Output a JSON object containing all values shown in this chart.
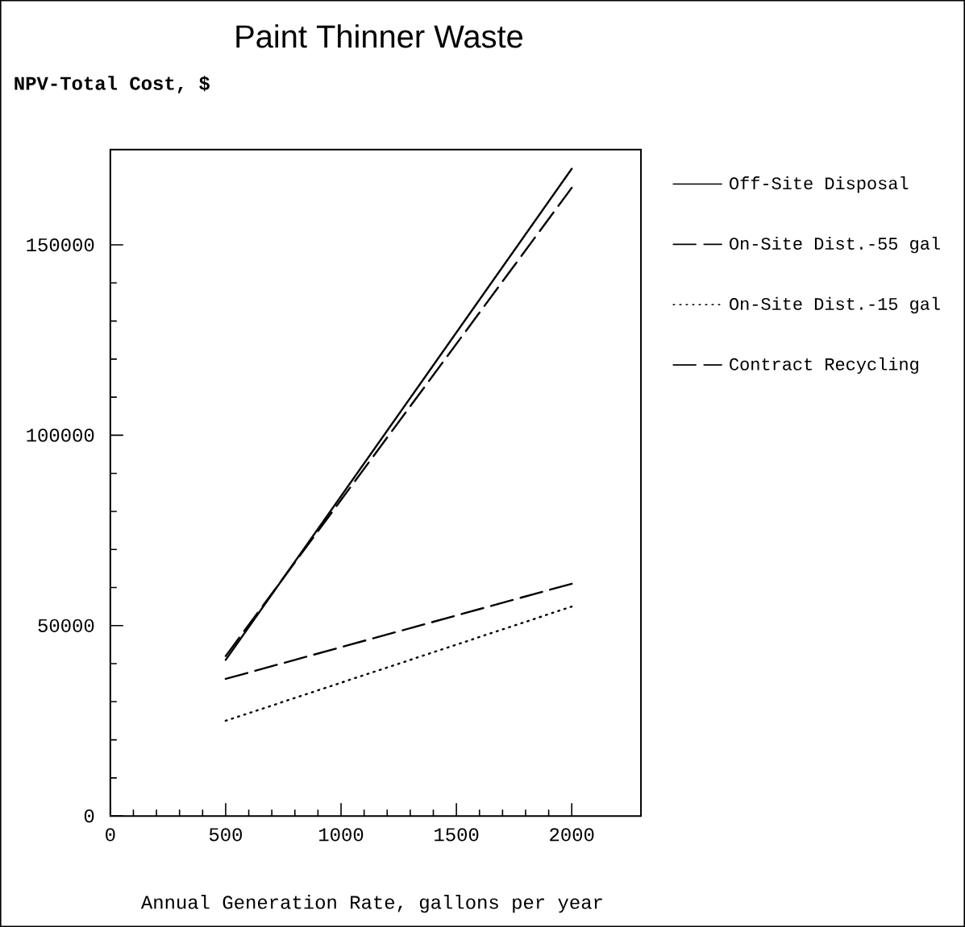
{
  "chart_data": {
    "type": "line",
    "title": "Paint Thinner Waste",
    "ylabel": "NPV-Total Cost, $",
    "xlabel": "Annual Generation Rate, gallons per year",
    "x": [
      500,
      2000
    ],
    "series": [
      {
        "name": "Off-Site Disposal",
        "color": "#000000",
        "values": [
          41000,
          170000
        ],
        "line_style": "solid"
      },
      {
        "name": "On-Site Dist.-55 gal",
        "color": "#000000",
        "values": [
          36000,
          61000
        ],
        "line_style": "dashed"
      },
      {
        "name": "On-Site Dist.-15 gal",
        "color": "#000000",
        "values": [
          25000,
          55000
        ],
        "line_style": "dotted"
      },
      {
        "name": "Contract Recycling",
        "color": "#000000",
        "values": [
          42000,
          165000
        ],
        "line_style": "dashed"
      }
    ],
    "xlim": [
      0,
      2300
    ],
    "ylim": [
      0,
      175000
    ],
    "xticks": [
      0,
      500,
      1000,
      1500,
      2000
    ],
    "yticks": [
      0,
      50000,
      100000,
      150000
    ],
    "legend": "right",
    "grid": false
  }
}
